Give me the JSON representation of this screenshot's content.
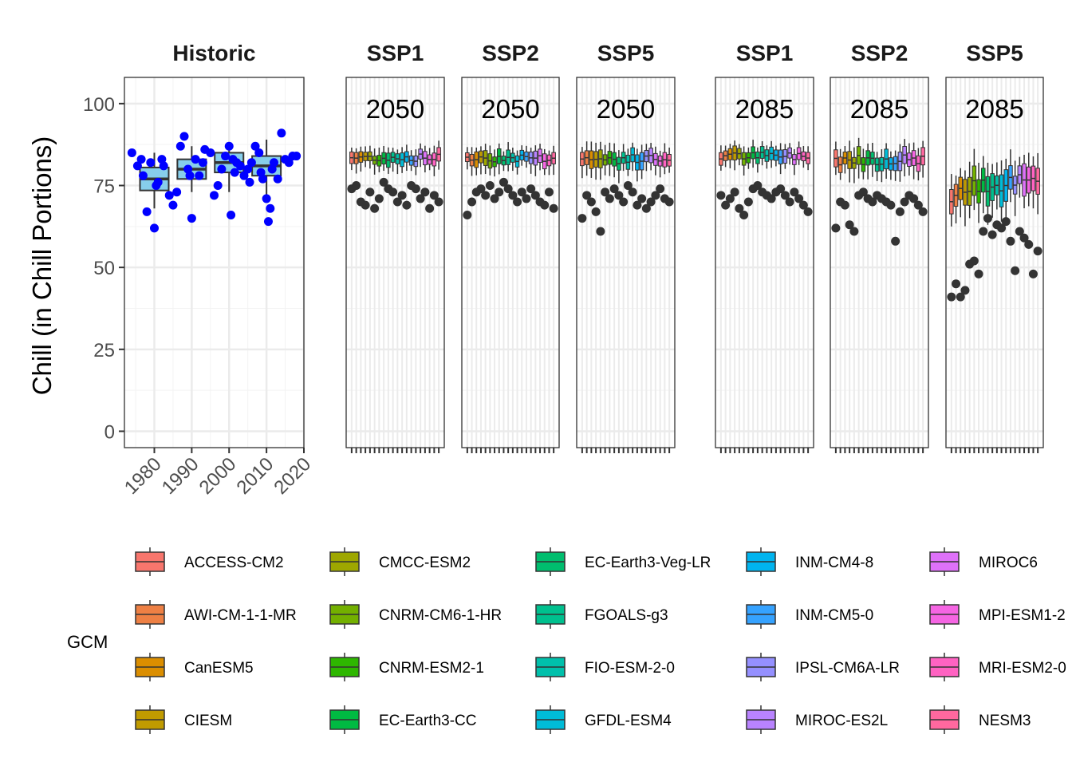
{
  "colors": {
    "historic_box_fill": "#87ceeb",
    "historic_points": "#0000ff",
    "outlier_points": "#333333",
    "panel_border": "#333333",
    "grid_major": "#ebebeb",
    "grid_minor": "#f3f3f3"
  },
  "chart_data": {
    "type": "box",
    "ylabel": "Chill (in Chill Portions)",
    "ylim": [
      -5,
      108
    ],
    "y_ticks": [
      0,
      25,
      50,
      75,
      100
    ],
    "grid": true,
    "legend_position": "bottom",
    "legend_title": "GCM",
    "legend_entries": [
      {
        "name": "ACCESS-CM2",
        "color": "#F8766D"
      },
      {
        "name": "AWI-CM-1-1-MR",
        "color": "#EE8044"
      },
      {
        "name": "CanESM5",
        "color": "#DB8E00"
      },
      {
        "name": "CIESM",
        "color": "#C09B00"
      },
      {
        "name": "CMCC-ESM2",
        "color": "#9EA700"
      },
      {
        "name": "CNRM-CM6-1-HR",
        "color": "#73B000"
      },
      {
        "name": "CNRM-ESM2-1",
        "color": "#2EB700"
      },
      {
        "name": "EC-Earth3-CC",
        "color": "#00BA42"
      },
      {
        "name": "EC-Earth3-Veg-LR",
        "color": "#00BD6E"
      },
      {
        "name": "FGOALS-g3",
        "color": "#00C08E"
      },
      {
        "name": "FIO-ESM-2-0",
        "color": "#00C0AB"
      },
      {
        "name": "GFDL-ESM4",
        "color": "#00BCD8"
      },
      {
        "name": "INM-CM4-8",
        "color": "#00B4EF"
      },
      {
        "name": "INM-CM5-0",
        "color": "#35A2FF"
      },
      {
        "name": "IPSL-CM6A-LR",
        "color": "#9590FF"
      },
      {
        "name": "MIROC-ES2L",
        "color": "#B983FF"
      },
      {
        "name": "MIROC6",
        "color": "#DE71F9"
      },
      {
        "name": "MPI-ESM1-2",
        "color": "#F565E3"
      },
      {
        "name": "MRI-ESM2-0",
        "color": "#FF63C2"
      },
      {
        "name": "NESM3",
        "color": "#FF689F"
      }
    ],
    "historic": {
      "title": "Historic",
      "xlim": [
        1972,
        2020
      ],
      "x_ticks": [
        1980,
        1990,
        2000,
        2010,
        2020
      ],
      "boxes": [
        {
          "x": 1980,
          "q1": 73.5,
          "median": 77,
          "q3": 80.5,
          "low": 68,
          "high": 85
        },
        {
          "x": 1990,
          "q1": 77,
          "median": 80,
          "q3": 83,
          "low": 73,
          "high": 87
        },
        {
          "x": 2000,
          "q1": 79,
          "median": 82,
          "q3": 85,
          "low": 73,
          "high": 88
        },
        {
          "x": 2010,
          "q1": 78,
          "median": 81,
          "q3": 84,
          "low": 72,
          "high": 89
        }
      ],
      "points": [
        [
          1974,
          85
        ],
        [
          1975.5,
          81
        ],
        [
          1976.5,
          83
        ],
        [
          1977,
          78
        ],
        [
          1978,
          67
        ],
        [
          1979,
          82
        ],
        [
          1980,
          62
        ],
        [
          1980.5,
          75
        ],
        [
          1981,
          76
        ],
        [
          1982,
          83
        ],
        [
          1982.5,
          81
        ],
        [
          1984,
          72
        ],
        [
          1985,
          69
        ],
        [
          1986,
          73
        ],
        [
          1987,
          87
        ],
        [
          1988,
          90
        ],
        [
          1989,
          80
        ],
        [
          1989.5,
          78
        ],
        [
          1990,
          65
        ],
        [
          1991,
          83
        ],
        [
          1992,
          78
        ],
        [
          1993,
          82
        ],
        [
          1993.5,
          86
        ],
        [
          1995,
          85
        ],
        [
          1996,
          72
        ],
        [
          1997,
          75
        ],
        [
          1998,
          80
        ],
        [
          1999,
          84
        ],
        [
          2000,
          87
        ],
        [
          2000.5,
          66
        ],
        [
          2001,
          83
        ],
        [
          2001.5,
          79
        ],
        [
          2002,
          82
        ],
        [
          2003,
          81
        ],
        [
          2004,
          78
        ],
        [
          2005,
          80
        ],
        [
          2005.5,
          76
        ],
        [
          2006,
          82
        ],
        [
          2007,
          87
        ],
        [
          2008,
          85
        ],
        [
          2008.5,
          79
        ],
        [
          2009,
          77
        ],
        [
          2010,
          71
        ],
        [
          2010.5,
          64
        ],
        [
          2011,
          68
        ],
        [
          2011.5,
          80
        ],
        [
          2012,
          82
        ],
        [
          2013,
          77
        ],
        [
          2014,
          91
        ],
        [
          2015,
          83
        ],
        [
          2016,
          82
        ],
        [
          2017,
          84
        ],
        [
          2018,
          84
        ]
      ]
    },
    "scenarios": [
      {
        "title": "SSP1",
        "year": "2050",
        "center": 83.5,
        "spread": 2.0,
        "outliers": [
          74,
          75,
          70,
          69,
          73,
          68,
          71,
          76,
          74,
          73,
          70,
          72,
          69,
          75,
          74,
          71,
          73,
          68,
          72,
          70
        ]
      },
      {
        "title": "SSP2",
        "year": "2050",
        "center": 83.5,
        "spread": 2.2,
        "outliers": [
          66,
          70,
          73,
          74,
          72,
          75,
          71,
          73,
          76,
          74,
          72,
          70,
          73,
          71,
          74,
          72,
          70,
          69,
          73,
          68
        ]
      },
      {
        "title": "SSP5",
        "year": "2050",
        "center": 83.0,
        "spread": 2.5,
        "outliers": [
          65,
          72,
          70,
          67,
          61,
          73,
          71,
          74,
          72,
          70,
          75,
          73,
          69,
          71,
          68,
          70,
          72,
          74,
          71,
          70
        ]
      },
      {
        "title": "SSP1",
        "year": "2085",
        "center": 84.0,
        "spread": 2.0,
        "outliers": [
          72,
          69,
          71,
          73,
          68,
          66,
          70,
          74,
          75,
          73,
          72,
          71,
          73,
          74,
          72,
          70,
          73,
          71,
          69,
          67
        ]
      },
      {
        "title": "SSP2",
        "year": "2085",
        "center": 83.0,
        "spread": 2.8,
        "outliers": [
          62,
          70,
          69,
          63,
          61,
          72,
          73,
          71,
          70,
          72,
          71,
          70,
          69,
          58,
          67,
          70,
          72,
          71,
          69,
          67
        ]
      },
      {
        "title": "SSP5",
        "year": "2085",
        "center": 75.0,
        "spread": 4.5,
        "outliers": [
          41,
          45,
          41,
          43,
          51,
          52,
          48,
          61,
          65,
          60,
          63,
          62,
          64,
          58,
          49,
          61,
          59,
          57,
          48,
          55
        ]
      }
    ]
  }
}
